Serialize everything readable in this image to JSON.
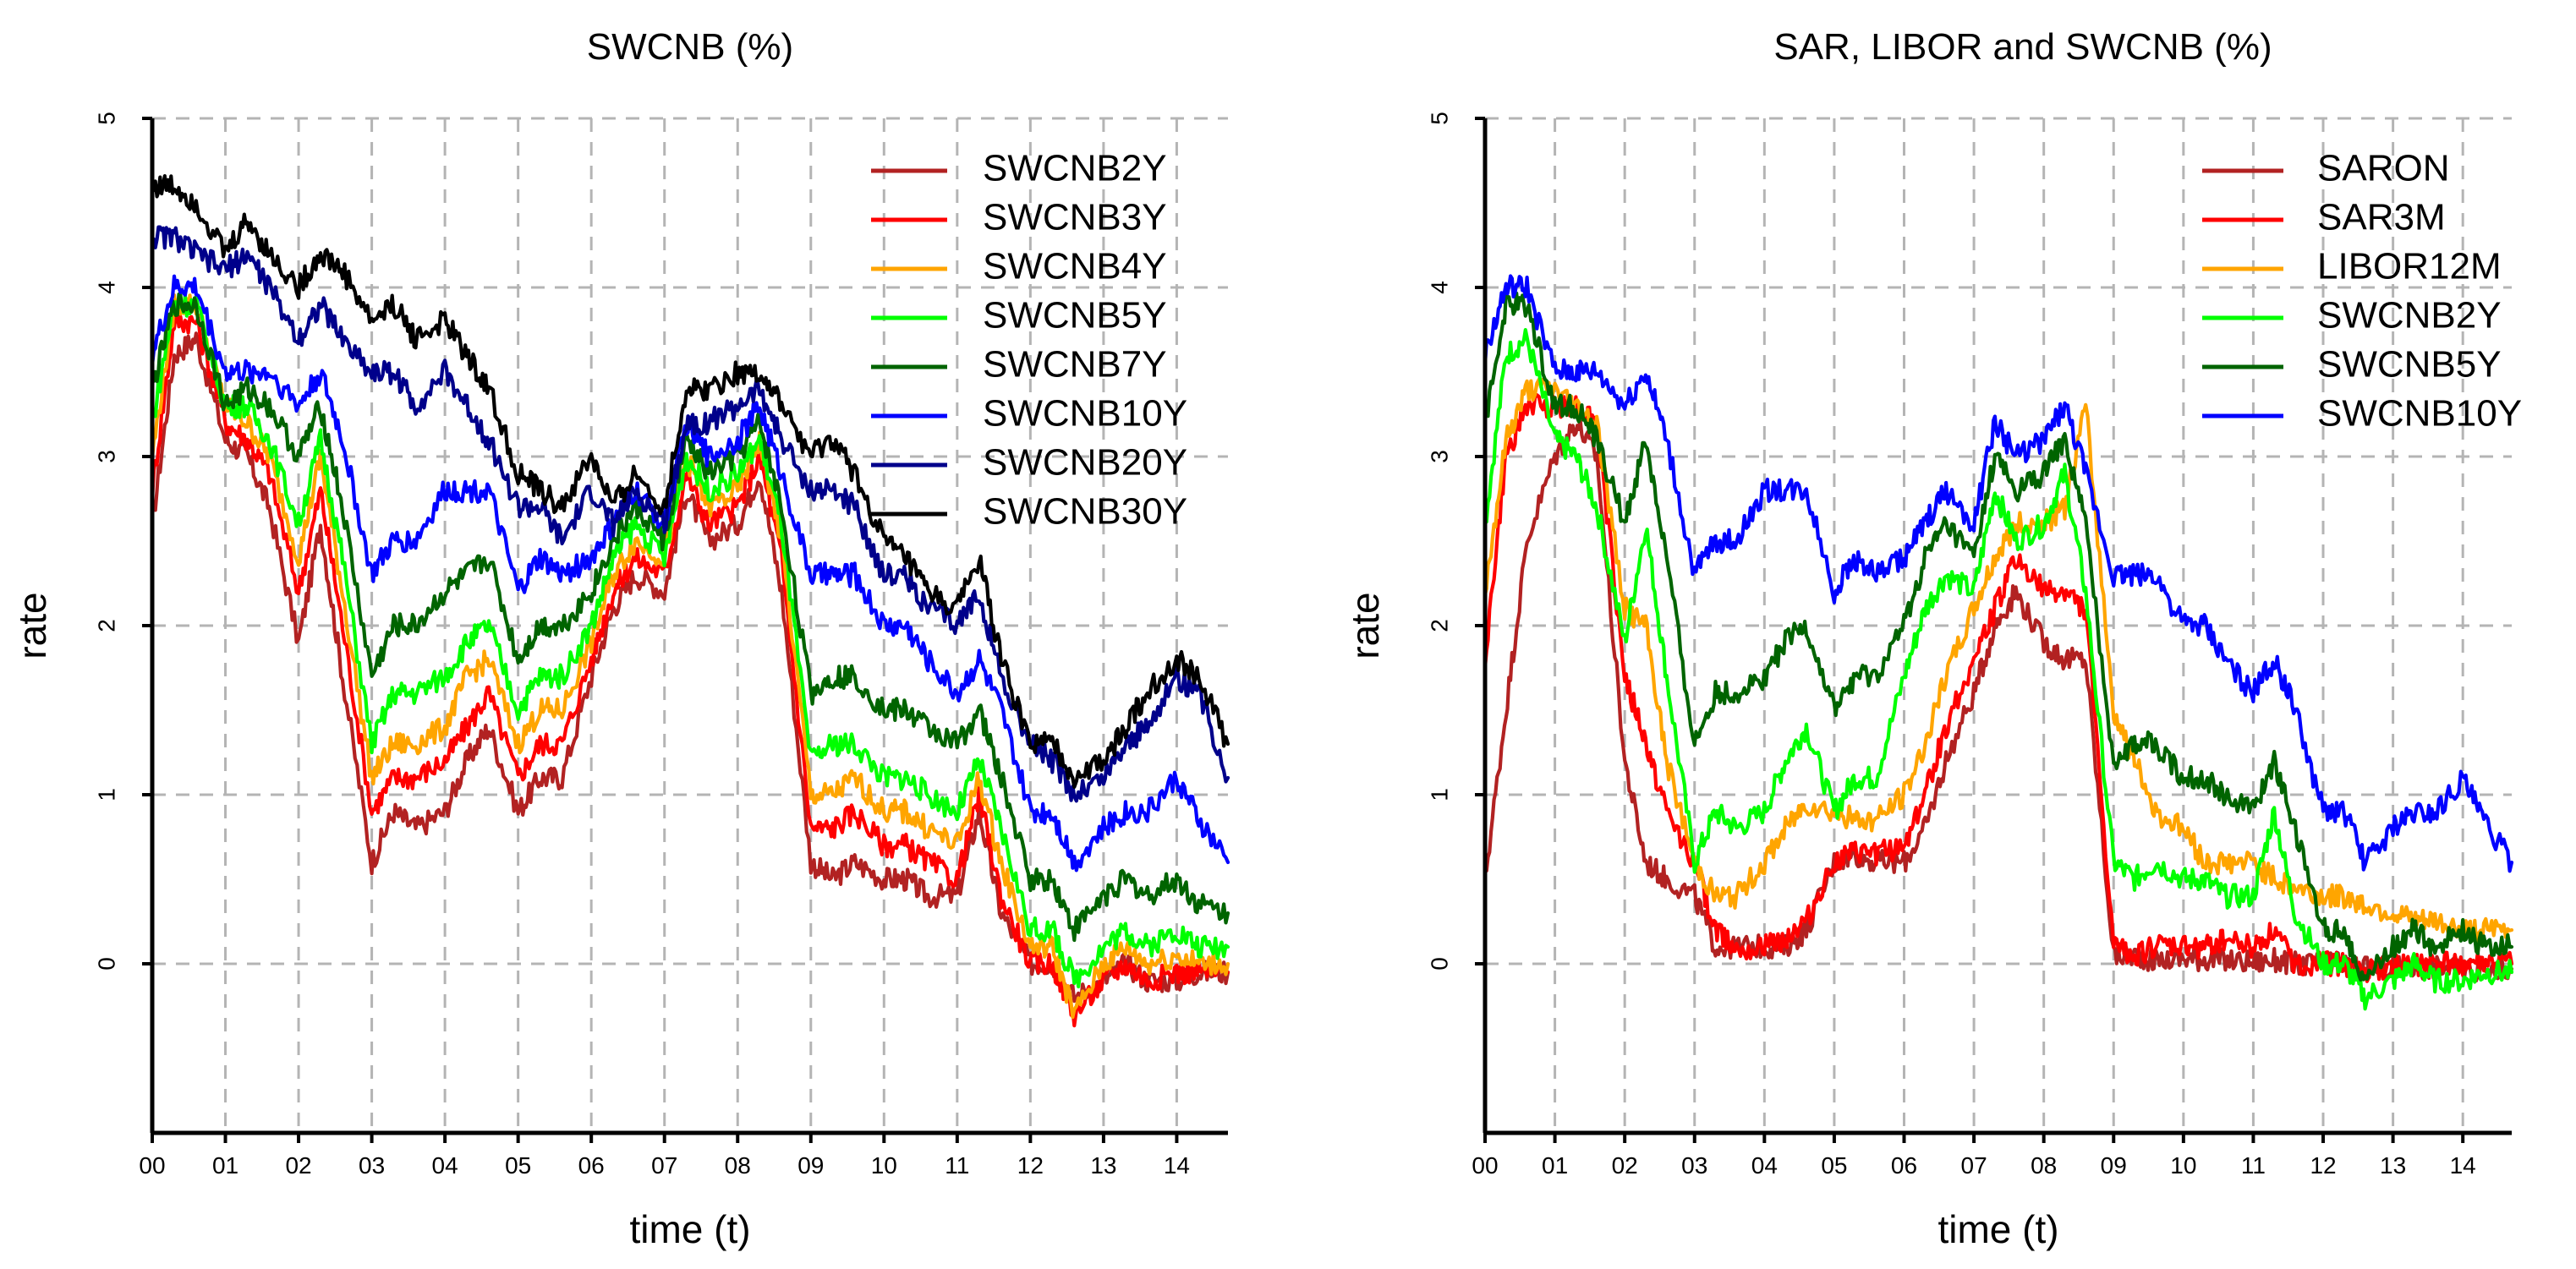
{
  "chart_data": [
    {
      "type": "line",
      "title": "SWCNB (%)",
      "xlabel": "time (t)",
      "ylabel": "rate",
      "xlim": [
        0,
        14.7
      ],
      "ylim": [
        -1,
        5
      ],
      "x_ticks": [
        0,
        1,
        2,
        3,
        4,
        5,
        6,
        7,
        8,
        9,
        10,
        11,
        12,
        13,
        14
      ],
      "x_tick_labels": [
        "00",
        "01",
        "02",
        "03",
        "04",
        "05",
        "06",
        "07",
        "08",
        "09",
        "10",
        "11",
        "12",
        "13",
        "14"
      ],
      "y_ticks": [
        0,
        1,
        2,
        3,
        4,
        5
      ],
      "y_tick_labels": [
        "0",
        "1",
        "2",
        "3",
        "4",
        "5"
      ],
      "grid": true,
      "legend": "top-right",
      "x": [
        0,
        0.3,
        0.6,
        1.0,
        1.3,
        1.6,
        2.0,
        2.3,
        2.6,
        3.0,
        3.3,
        3.6,
        4.0,
        4.3,
        4.6,
        5.0,
        5.3,
        5.6,
        6.0,
        6.3,
        6.6,
        7.0,
        7.3,
        7.6,
        8.0,
        8.3,
        8.6,
        9.0,
        9.3,
        9.6,
        10.0,
        10.3,
        10.6,
        11.0,
        11.3,
        11.6,
        12.0,
        12.3,
        12.6,
        13.0,
        13.3,
        13.6,
        14.0,
        14.3,
        14.7
      ],
      "series": [
        {
          "name": "SWCNB2Y",
          "color": "#b22222",
          "values": [
            2.6,
            3.6,
            3.7,
            3.1,
            3.0,
            2.7,
            1.9,
            2.6,
            1.7,
            0.6,
            0.9,
            0.8,
            0.9,
            1.2,
            1.4,
            0.9,
            1.1,
            1.1,
            1.7,
            2.1,
            2.3,
            2.2,
            2.8,
            2.5,
            2.6,
            2.9,
            2.2,
            0.6,
            0.5,
            0.6,
            0.5,
            0.5,
            0.4,
            0.4,
            0.9,
            0.3,
            0.0,
            0.0,
            -0.2,
            -0.1,
            0.0,
            -0.1,
            -0.1,
            -0.05,
            -0.05
          ]
        },
        {
          "name": "SWCNB3Y",
          "color": "#ff0000",
          "values": [
            2.8,
            3.8,
            3.8,
            3.2,
            3.1,
            2.9,
            2.2,
            2.8,
            2.0,
            0.9,
            1.1,
            1.1,
            1.2,
            1.4,
            1.6,
            1.1,
            1.3,
            1.3,
            1.8,
            2.2,
            2.4,
            2.3,
            2.9,
            2.6,
            2.7,
            3.0,
            2.4,
            0.8,
            0.8,
            0.9,
            0.7,
            0.7,
            0.6,
            0.5,
            1.0,
            0.4,
            0.0,
            0.0,
            -0.3,
            -0.1,
            0.0,
            -0.1,
            -0.05,
            -0.05,
            -0.05
          ]
        },
        {
          "name": "SWCNB4Y",
          "color": "#ffa500",
          "values": [
            3.0,
            3.9,
            3.9,
            3.3,
            3.2,
            3.0,
            2.4,
            3.0,
            2.2,
            1.1,
            1.3,
            1.3,
            1.4,
            1.7,
            1.8,
            1.3,
            1.5,
            1.5,
            1.9,
            2.3,
            2.5,
            2.4,
            3.0,
            2.7,
            2.8,
            3.1,
            2.5,
            1.0,
            1.0,
            1.1,
            0.9,
            0.9,
            0.8,
            0.7,
            1.1,
            0.6,
            0.1,
            0.1,
            -0.3,
            0.0,
            0.1,
            0.0,
            0.05,
            0.0,
            0.0
          ]
        },
        {
          "name": "SWCNB5Y",
          "color": "#00ff00",
          "values": [
            3.2,
            3.9,
            3.9,
            3.3,
            3.3,
            3.1,
            2.6,
            3.1,
            2.4,
            1.3,
            1.6,
            1.6,
            1.7,
            1.9,
            2.0,
            1.5,
            1.7,
            1.7,
            2.0,
            2.4,
            2.6,
            2.4,
            3.0,
            2.8,
            2.9,
            3.1,
            2.6,
            1.2,
            1.3,
            1.3,
            1.1,
            1.1,
            1.0,
            0.9,
            1.2,
            0.8,
            0.2,
            0.2,
            -0.1,
            0.1,
            0.2,
            0.1,
            0.2,
            0.1,
            0.1
          ]
        },
        {
          "name": "SWCNB7Y",
          "color": "#006400",
          "values": [
            3.4,
            3.9,
            3.9,
            3.3,
            3.4,
            3.3,
            3.0,
            3.3,
            2.7,
            1.7,
            2.0,
            2.0,
            2.2,
            2.3,
            2.4,
            1.8,
            2.0,
            2.0,
            2.2,
            2.5,
            2.7,
            2.5,
            3.1,
            2.9,
            3.0,
            3.2,
            2.7,
            1.6,
            1.7,
            1.7,
            1.5,
            1.5,
            1.4,
            1.3,
            1.5,
            1.1,
            0.5,
            0.5,
            0.2,
            0.4,
            0.5,
            0.4,
            0.5,
            0.35,
            0.3
          ]
        },
        {
          "name": "SWCNB10Y",
          "color": "#0000ff",
          "values": [
            3.6,
            4.0,
            4.0,
            3.5,
            3.5,
            3.5,
            3.3,
            3.5,
            3.1,
            2.3,
            2.5,
            2.5,
            2.8,
            2.8,
            2.8,
            2.2,
            2.4,
            2.3,
            2.4,
            2.6,
            2.8,
            2.6,
            3.2,
            3.0,
            3.1,
            3.3,
            2.9,
            2.3,
            2.3,
            2.3,
            2.0,
            2.0,
            1.8,
            1.6,
            1.8,
            1.5,
            0.9,
            0.9,
            0.6,
            0.8,
            0.9,
            0.9,
            1.1,
            0.85,
            0.6
          ]
        },
        {
          "name": "SWCNB20Y",
          "color": "#00008b",
          "values": [
            4.3,
            4.3,
            4.2,
            4.1,
            4.2,
            4.0,
            3.7,
            3.9,
            3.7,
            3.5,
            3.5,
            3.3,
            3.5,
            3.3,
            3.1,
            2.7,
            2.7,
            2.5,
            2.8,
            2.6,
            2.8,
            2.6,
            3.2,
            3.2,
            3.3,
            3.4,
            3.1,
            2.8,
            2.8,
            2.7,
            2.3,
            2.3,
            2.1,
            2.0,
            2.2,
            1.7,
            1.3,
            1.2,
            1.0,
            1.1,
            1.3,
            1.4,
            1.7,
            1.6,
            1.1
          ]
        },
        {
          "name": "SWCNB30Y",
          "color": "#000000",
          "values": [
            4.6,
            4.6,
            4.5,
            4.2,
            4.4,
            4.2,
            4.0,
            4.2,
            4.1,
            3.8,
            3.9,
            3.7,
            3.8,
            3.6,
            3.4,
            2.9,
            2.8,
            2.7,
            3.0,
            2.7,
            2.9,
            2.7,
            3.4,
            3.4,
            3.5,
            3.5,
            3.3,
            3.0,
            3.1,
            2.9,
            2.5,
            2.4,
            2.2,
            2.1,
            2.4,
            1.8,
            1.3,
            1.3,
            1.1,
            1.2,
            1.4,
            1.6,
            1.8,
            1.7,
            1.3
          ]
        }
      ]
    },
    {
      "type": "line",
      "title": "SAR, LIBOR and SWCNB (%)",
      "xlabel": "time (t)",
      "ylabel": "rate",
      "xlim": [
        0,
        14.7
      ],
      "ylim": [
        -1,
        5
      ],
      "x_ticks": [
        0,
        1,
        2,
        3,
        4,
        5,
        6,
        7,
        8,
        9,
        10,
        11,
        12,
        13,
        14
      ],
      "x_tick_labels": [
        "00",
        "01",
        "02",
        "03",
        "04",
        "05",
        "06",
        "07",
        "08",
        "09",
        "10",
        "11",
        "12",
        "13",
        "14"
      ],
      "y_ticks": [
        0,
        1,
        2,
        3,
        4,
        5
      ],
      "y_tick_labels": [
        "0",
        "1",
        "2",
        "3",
        "4",
        "5"
      ],
      "grid": true,
      "legend": "top-right",
      "x": [
        0,
        0.3,
        0.6,
        1.0,
        1.3,
        1.6,
        2.0,
        2.3,
        2.6,
        3.0,
        3.3,
        3.6,
        4.0,
        4.3,
        4.6,
        5.0,
        5.3,
        5.6,
        6.0,
        6.3,
        6.6,
        7.0,
        7.3,
        7.6,
        8.0,
        8.3,
        8.6,
        9.0,
        9.3,
        9.6,
        10.0,
        10.3,
        10.6,
        11.0,
        11.3,
        11.6,
        12.0,
        12.3,
        12.6,
        13.0,
        13.3,
        13.6,
        14.0,
        14.3,
        14.7
      ],
      "series": [
        {
          "name": "SARON",
          "color": "#b22222",
          "values": [
            0.5,
            1.5,
            2.5,
            3.0,
            3.2,
            3.0,
            1.2,
            0.6,
            0.5,
            0.4,
            0.1,
            0.1,
            0.1,
            0.1,
            0.2,
            0.6,
            0.65,
            0.6,
            0.6,
            0.8,
            1.2,
            1.6,
            2.0,
            2.2,
            1.9,
            1.8,
            1.8,
            0.05,
            0.05,
            0.02,
            0.03,
            0.03,
            0.02,
            0.01,
            0.02,
            0.0,
            0.0,
            0.0,
            -0.03,
            -0.02,
            -0.02,
            -0.02,
            -0.03,
            -0.03,
            -0.03
          ]
        },
        {
          "name": "SAR3M",
          "color": "#ff0000",
          "values": [
            1.8,
            3.0,
            3.3,
            3.3,
            3.3,
            3.2,
            1.7,
            1.3,
            0.9,
            0.6,
            0.2,
            0.1,
            0.1,
            0.15,
            0.25,
            0.6,
            0.65,
            0.65,
            0.7,
            1.0,
            1.4,
            1.8,
            2.1,
            2.4,
            2.2,
            2.2,
            2.1,
            0.1,
            0.05,
            0.1,
            0.1,
            0.1,
            0.15,
            0.1,
            0.2,
            0.0,
            0.0,
            0.0,
            -0.05,
            -0.02,
            0.0,
            0.0,
            0.0,
            0.0,
            0.0
          ]
        },
        {
          "name": "LIBOR12M",
          "color": "#ffa500",
          "values": [
            2.2,
            3.1,
            3.4,
            3.4,
            3.3,
            3.2,
            2.1,
            2.0,
            1.2,
            0.6,
            0.4,
            0.4,
            0.6,
            0.8,
            0.95,
            0.9,
            0.85,
            0.85,
            1.0,
            1.3,
            1.7,
            2.1,
            2.4,
            2.6,
            2.6,
            2.7,
            3.3,
            1.5,
            1.2,
            0.9,
            0.8,
            0.6,
            0.6,
            0.6,
            0.5,
            0.45,
            0.4,
            0.4,
            0.35,
            0.3,
            0.25,
            0.25,
            0.2,
            0.2,
            0.2
          ]
        },
        {
          "name": "SWCNB2Y",
          "color": "#00ff00",
          "values": [
            2.6,
            3.6,
            3.7,
            3.1,
            3.0,
            2.7,
            1.9,
            2.6,
            1.7,
            0.6,
            0.9,
            0.8,
            0.9,
            1.2,
            1.4,
            0.9,
            1.1,
            1.1,
            1.7,
            2.1,
            2.3,
            2.2,
            2.8,
            2.5,
            2.6,
            2.9,
            2.2,
            0.6,
            0.5,
            0.6,
            0.5,
            0.5,
            0.4,
            0.4,
            0.9,
            0.3,
            0.0,
            0.0,
            -0.2,
            -0.1,
            0.0,
            -0.1,
            -0.1,
            -0.05,
            -0.05
          ]
        },
        {
          "name": "SWCNB5Y",
          "color": "#006400",
          "values": [
            3.2,
            3.9,
            3.9,
            3.3,
            3.3,
            3.1,
            2.6,
            3.1,
            2.4,
            1.3,
            1.6,
            1.6,
            1.7,
            1.9,
            2.0,
            1.5,
            1.7,
            1.7,
            2.0,
            2.4,
            2.6,
            2.4,
            3.0,
            2.8,
            2.9,
            3.1,
            2.6,
            1.2,
            1.3,
            1.3,
            1.1,
            1.1,
            1.0,
            0.9,
            1.2,
            0.8,
            0.2,
            0.2,
            -0.1,
            0.1,
            0.2,
            0.1,
            0.2,
            0.1,
            0.1
          ]
        },
        {
          "name": "SWCNB10Y",
          "color": "#0000ff",
          "values": [
            3.6,
            4.0,
            4.0,
            3.5,
            3.5,
            3.5,
            3.3,
            3.5,
            3.1,
            2.3,
            2.5,
            2.5,
            2.8,
            2.8,
            2.8,
            2.2,
            2.4,
            2.3,
            2.4,
            2.6,
            2.8,
            2.6,
            3.2,
            3.0,
            3.1,
            3.3,
            2.9,
            2.3,
            2.3,
            2.3,
            2.0,
            2.0,
            1.8,
            1.6,
            1.8,
            1.5,
            0.9,
            0.9,
            0.6,
            0.8,
            0.9,
            0.9,
            1.1,
            0.85,
            0.6
          ]
        }
      ]
    }
  ]
}
